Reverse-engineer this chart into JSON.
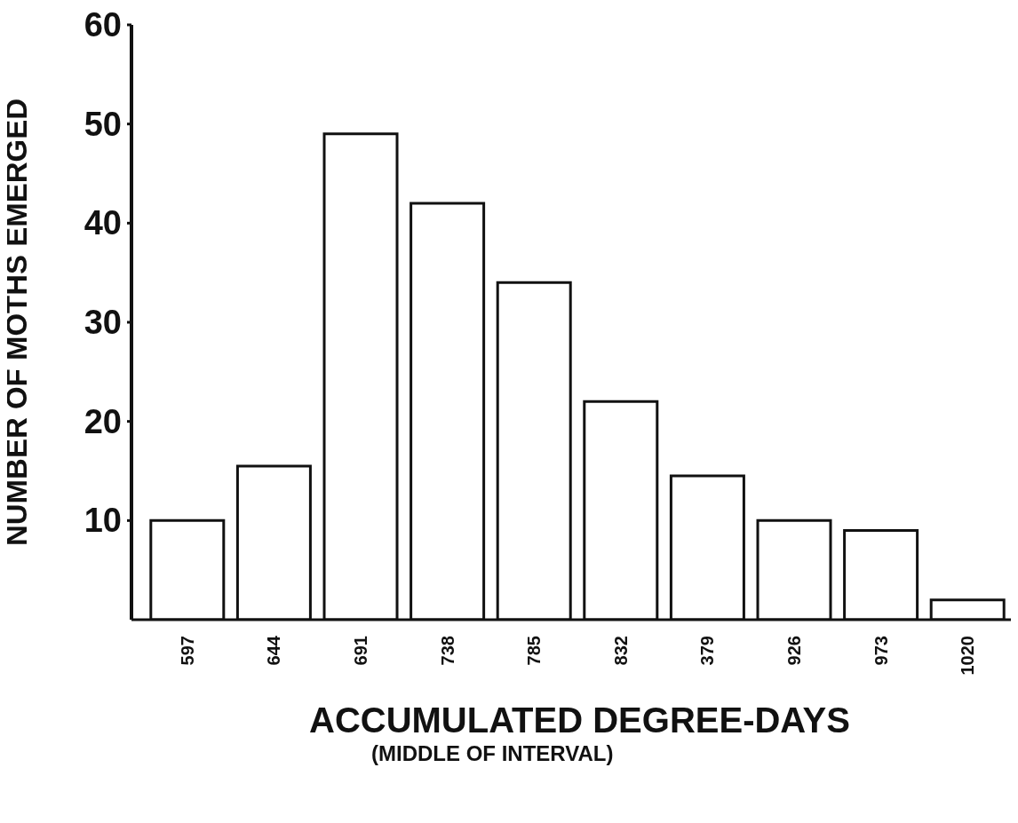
{
  "chart_data": {
    "type": "bar",
    "xlabel": "ACCUMULATED DEGREE-DAYS",
    "ylabel": "NUMBER OF MOTHS EMERGED",
    "annotations": [
      "(MIDDLE OF INTERVAL)"
    ],
    "categories": [
      "597",
      "644",
      "691",
      "738",
      "785",
      "832",
      "379",
      "926",
      "973",
      "1020"
    ],
    "values": [
      10,
      15.5,
      49,
      42,
      34,
      22,
      14.5,
      10,
      9,
      2
    ],
    "color": "#ffffff",
    "ylim": [
      0,
      60
    ],
    "yticks": [
      10,
      20,
      30,
      40,
      50,
      60
    ],
    "grid": false,
    "legend": false
  }
}
